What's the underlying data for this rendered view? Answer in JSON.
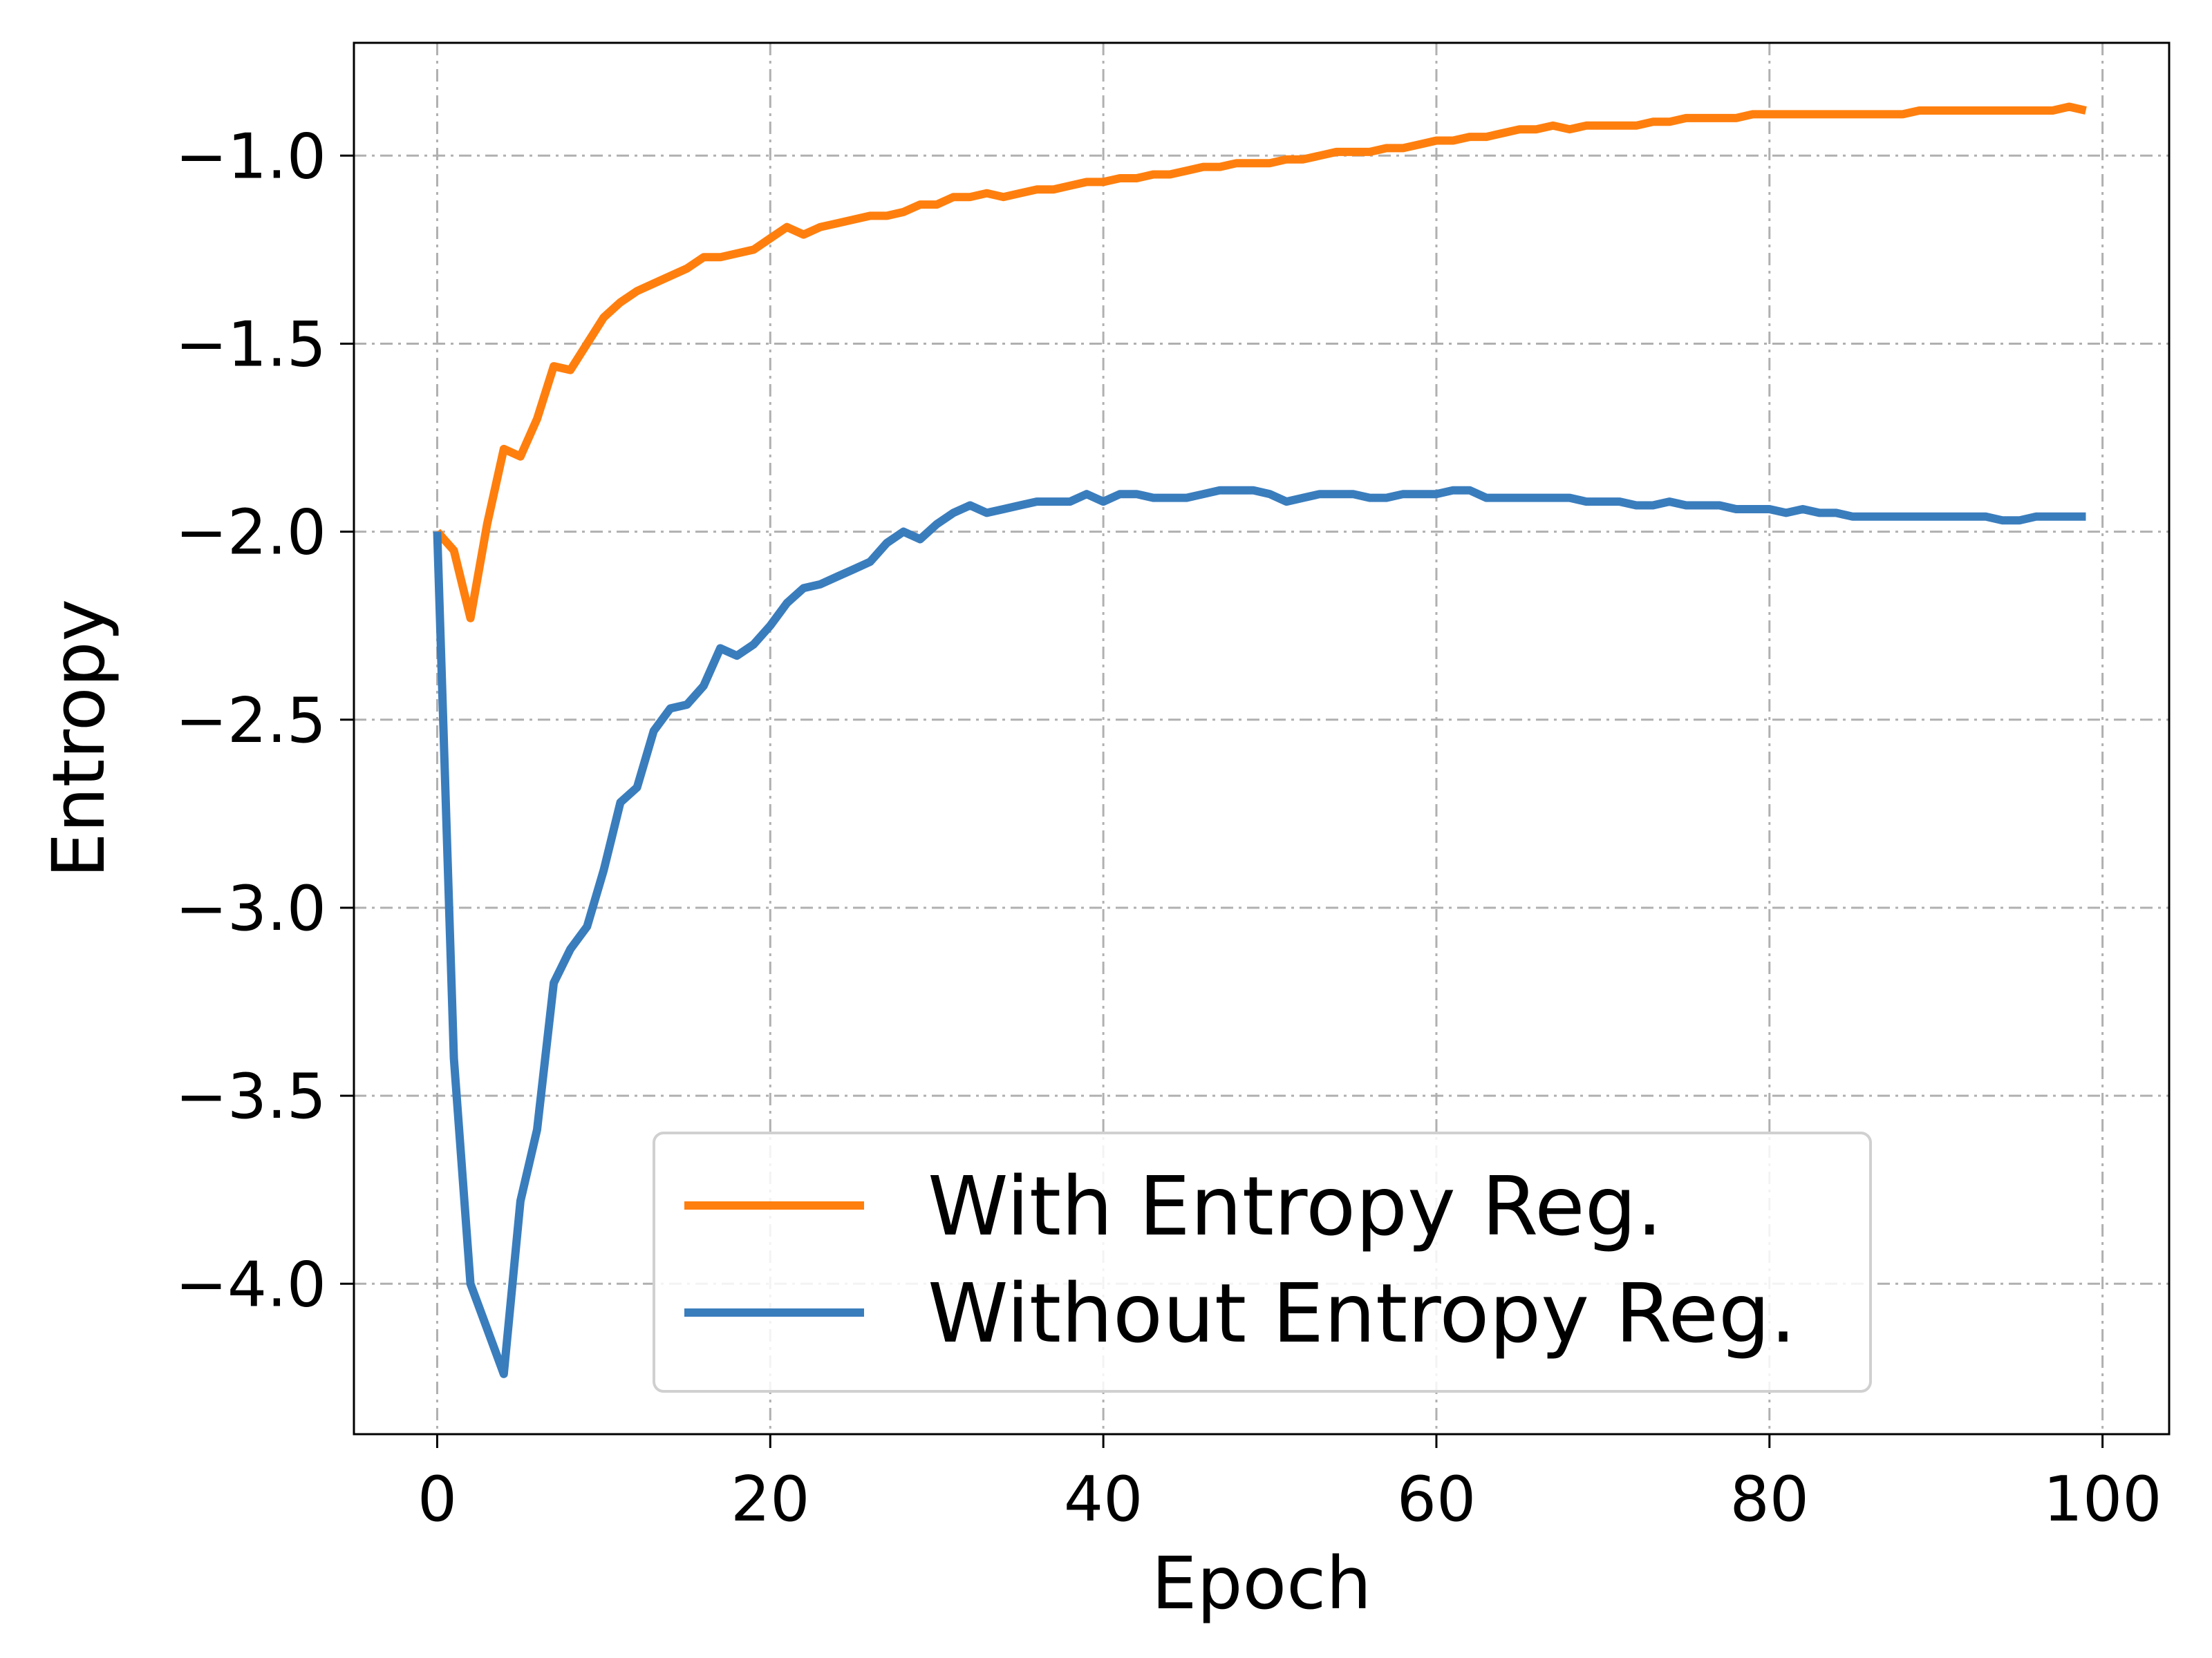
{
  "chart_data": {
    "type": "line",
    "title": "",
    "xlabel": "Epoch",
    "ylabel": "Entropy",
    "xlim": [
      -5,
      104
    ],
    "ylim": [
      -4.4,
      -0.7
    ],
    "xticks": [
      0,
      20,
      40,
      60,
      80,
      100
    ],
    "xtick_labels": [
      "0",
      "20",
      "40",
      "60",
      "80",
      "100"
    ],
    "yticks": [
      -1.0,
      -1.5,
      -2.0,
      -2.5,
      -3.0,
      -3.5,
      -4.0
    ],
    "ytick_labels": [
      "−1.0",
      "−1.5",
      "−2.0",
      "−2.5",
      "−3.0",
      "−3.5",
      "−4.0"
    ],
    "grid": true,
    "legend_position": "lower-right",
    "series": [
      {
        "name": "With Entropy Reg.",
        "color": "#ff7f0e",
        "x": [
          0,
          1,
          2,
          3,
          4,
          5,
          6,
          7,
          8,
          9,
          10,
          11,
          12,
          13,
          14,
          15,
          16,
          17,
          18,
          19,
          20,
          21,
          22,
          23,
          24,
          25,
          26,
          27,
          28,
          29,
          30,
          31,
          32,
          33,
          34,
          35,
          36,
          37,
          38,
          39,
          40,
          41,
          42,
          43,
          44,
          45,
          46,
          47,
          48,
          49,
          50,
          51,
          52,
          53,
          54,
          55,
          56,
          57,
          58,
          59,
          60,
          61,
          62,
          63,
          64,
          65,
          66,
          67,
          68,
          69,
          70,
          71,
          72,
          73,
          74,
          75,
          76,
          77,
          78,
          79,
          80,
          81,
          82,
          83,
          84,
          85,
          86,
          87,
          88,
          89,
          90,
          91,
          92,
          93,
          94,
          95,
          96,
          97,
          98,
          99
        ],
        "values": [
          -2.0,
          -2.05,
          -2.23,
          -1.98,
          -1.78,
          -1.8,
          -1.7,
          -1.56,
          -1.57,
          -1.5,
          -1.43,
          -1.39,
          -1.36,
          -1.34,
          -1.32,
          -1.3,
          -1.27,
          -1.27,
          -1.26,
          -1.25,
          -1.22,
          -1.19,
          -1.21,
          -1.19,
          -1.18,
          -1.17,
          -1.16,
          -1.16,
          -1.15,
          -1.13,
          -1.13,
          -1.11,
          -1.11,
          -1.1,
          -1.11,
          -1.1,
          -1.09,
          -1.09,
          -1.08,
          -1.07,
          -1.07,
          -1.06,
          -1.06,
          -1.05,
          -1.05,
          -1.04,
          -1.03,
          -1.03,
          -1.02,
          -1.02,
          -1.02,
          -1.01,
          -1.01,
          -1.0,
          -0.99,
          -0.99,
          -0.99,
          -0.98,
          -0.98,
          -0.97,
          -0.96,
          -0.96,
          -0.95,
          -0.95,
          -0.94,
          -0.93,
          -0.93,
          -0.92,
          -0.93,
          -0.92,
          -0.92,
          -0.92,
          -0.92,
          -0.91,
          -0.91,
          -0.9,
          -0.9,
          -0.9,
          -0.9,
          -0.89,
          -0.89,
          -0.89,
          -0.89,
          -0.89,
          -0.89,
          -0.89,
          -0.89,
          -0.89,
          -0.89,
          -0.88,
          -0.88,
          -0.88,
          -0.88,
          -0.88,
          -0.88,
          -0.88,
          -0.88,
          -0.88,
          -0.87,
          -0.88
        ]
      },
      {
        "name": "Without Entropy Reg.",
        "color": "#3a7dbd",
        "x": [
          0,
          1,
          2,
          3,
          4,
          5,
          6,
          7,
          8,
          9,
          10,
          11,
          12,
          13,
          14,
          15,
          16,
          17,
          18,
          19,
          20,
          21,
          22,
          23,
          24,
          25,
          26,
          27,
          28,
          29,
          30,
          31,
          32,
          33,
          34,
          35,
          36,
          37,
          38,
          39,
          40,
          41,
          42,
          43,
          44,
          45,
          46,
          47,
          48,
          49,
          50,
          51,
          52,
          53,
          54,
          55,
          56,
          57,
          58,
          59,
          60,
          61,
          62,
          63,
          64,
          65,
          66,
          67,
          68,
          69,
          70,
          71,
          72,
          73,
          74,
          75,
          76,
          77,
          78,
          79,
          80,
          81,
          82,
          83,
          84,
          85,
          86,
          87,
          88,
          89,
          90,
          91,
          92,
          93,
          94,
          95,
          96,
          97,
          98,
          99
        ],
        "values": [
          -2.0,
          -3.4,
          -4.0,
          -4.12,
          -4.24,
          -3.78,
          -3.59,
          -3.2,
          -3.11,
          -3.05,
          -2.9,
          -2.72,
          -2.68,
          -2.53,
          -2.47,
          -2.46,
          -2.41,
          -2.31,
          -2.33,
          -2.3,
          -2.25,
          -2.19,
          -2.15,
          -2.14,
          -2.12,
          -2.1,
          -2.08,
          -2.03,
          -2.0,
          -2.02,
          -1.98,
          -1.95,
          -1.93,
          -1.95,
          -1.94,
          -1.93,
          -1.92,
          -1.92,
          -1.92,
          -1.9,
          -1.92,
          -1.9,
          -1.9,
          -1.91,
          -1.91,
          -1.91,
          -1.9,
          -1.89,
          -1.89,
          -1.89,
          -1.9,
          -1.92,
          -1.91,
          -1.9,
          -1.9,
          -1.9,
          -1.91,
          -1.91,
          -1.9,
          -1.9,
          -1.9,
          -1.89,
          -1.89,
          -1.91,
          -1.91,
          -1.91,
          -1.91,
          -1.91,
          -1.91,
          -1.92,
          -1.92,
          -1.92,
          -1.93,
          -1.93,
          -1.92,
          -1.93,
          -1.93,
          -1.93,
          -1.94,
          -1.94,
          -1.94,
          -1.95,
          -1.94,
          -1.95,
          -1.95,
          -1.96,
          -1.96,
          -1.96,
          -1.96,
          -1.96,
          -1.96,
          -1.96,
          -1.96,
          -1.96,
          -1.97,
          -1.97,
          -1.96,
          -1.96,
          -1.96,
          -1.96
        ]
      }
    ]
  }
}
